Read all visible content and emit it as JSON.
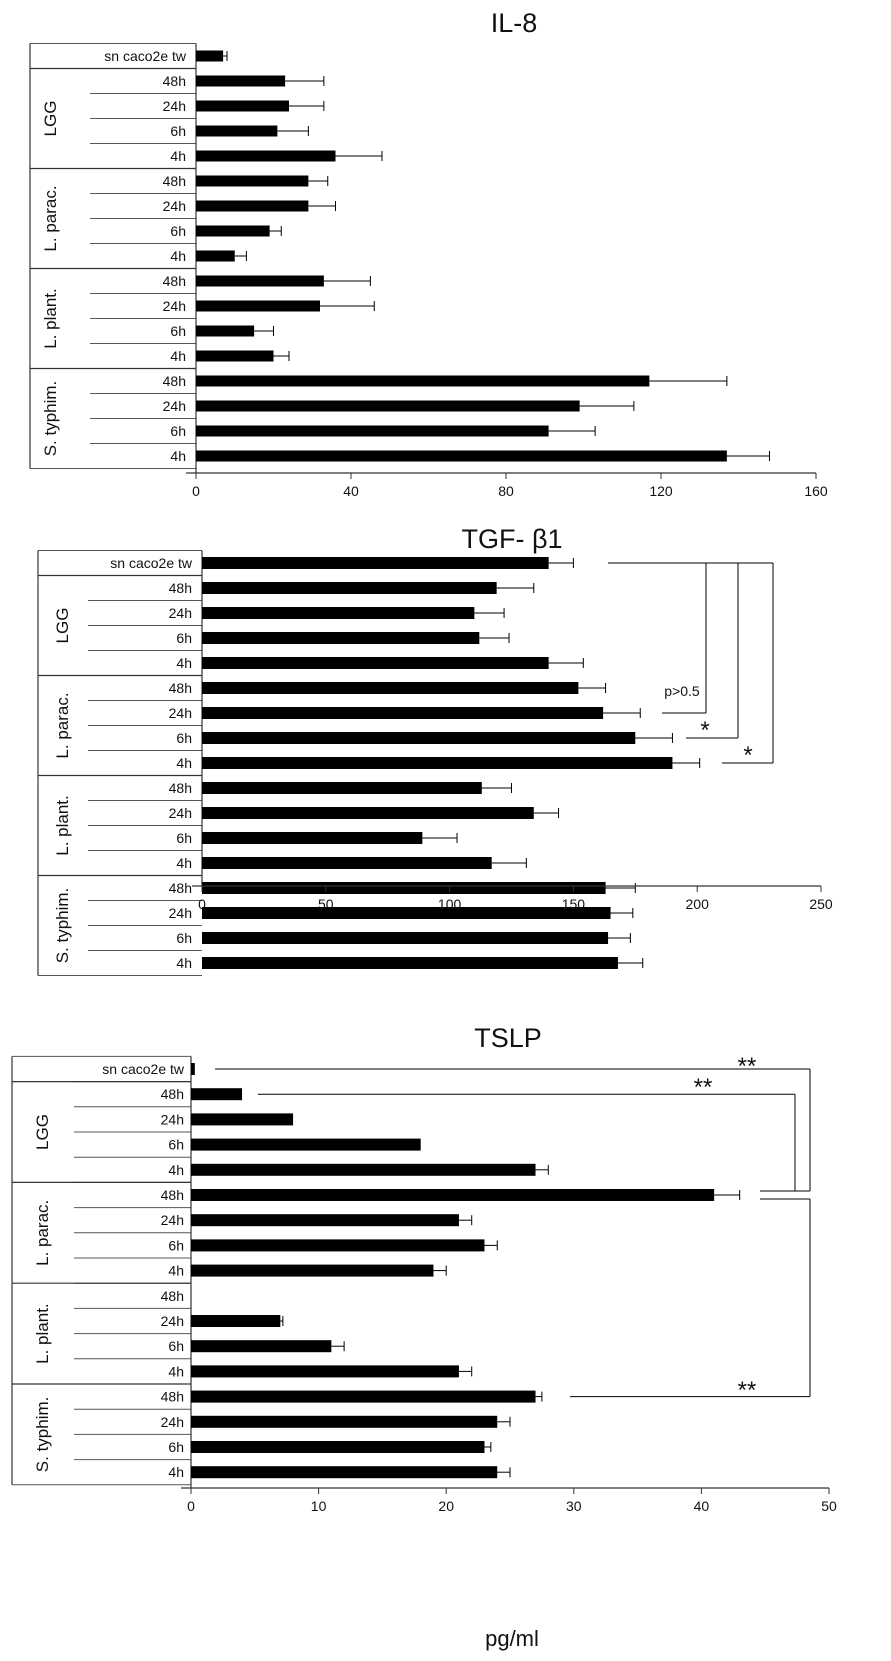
{
  "chart_data": [
    {
      "type": "bar",
      "orientation": "horizontal",
      "title": "IL-8",
      "xlim": [
        0,
        160
      ],
      "xticks": [
        "0",
        "40",
        "80",
        "120",
        "160"
      ],
      "grid": false,
      "rows": [
        {
          "group": "",
          "label": "sn caco2e tw",
          "value": 7,
          "error": 1
        },
        {
          "group": "LGG",
          "label": "48h",
          "value": 23,
          "error": 10
        },
        {
          "group": "LGG",
          "label": "24h",
          "value": 24,
          "error": 9
        },
        {
          "group": "LGG",
          "label": "6h",
          "value": 21,
          "error": 8
        },
        {
          "group": "LGG",
          "label": "4h",
          "value": 36,
          "error": 12
        },
        {
          "group": "L. parac.",
          "label": "48h",
          "value": 29,
          "error": 5
        },
        {
          "group": "L. parac.",
          "label": "24h",
          "value": 29,
          "error": 7
        },
        {
          "group": "L. parac.",
          "label": "6h",
          "value": 19,
          "error": 3
        },
        {
          "group": "L. parac.",
          "label": "4h",
          "value": 10,
          "error": 3
        },
        {
          "group": "L. plant.",
          "label": "48h",
          "value": 33,
          "error": 12
        },
        {
          "group": "L. plant.",
          "label": "24h",
          "value": 32,
          "error": 14
        },
        {
          "group": "L. plant.",
          "label": "6h",
          "value": 15,
          "error": 5
        },
        {
          "group": "L. plant.",
          "label": "4h",
          "value": 20,
          "error": 4
        },
        {
          "group": "S. typhim.",
          "label": "48h",
          "value": 117,
          "error": 20
        },
        {
          "group": "S. typhim.",
          "label": "24h",
          "value": 99,
          "error": 14
        },
        {
          "group": "S. typhim.",
          "label": "6h",
          "value": 91,
          "error": 12
        },
        {
          "group": "S. typhim.",
          "label": "4h",
          "value": 137,
          "error": 11
        }
      ],
      "groups": [
        "LGG",
        "L. parac.",
        "L. plant.",
        "S. typhim."
      ],
      "annotations": []
    },
    {
      "type": "bar",
      "orientation": "horizontal",
      "title": "TGF- β1",
      "xlim": [
        0,
        250
      ],
      "xticks": [
        "0",
        "50",
        "100",
        "150",
        "200",
        "250"
      ],
      "grid": false,
      "rows": [
        {
          "group": "",
          "label": "sn caco2e tw",
          "value": 140,
          "error": 10
        },
        {
          "group": "LGG",
          "label": "48h",
          "value": 119,
          "error": 15
        },
        {
          "group": "LGG",
          "label": "24h",
          "value": 110,
          "error": 12
        },
        {
          "group": "LGG",
          "label": "6h",
          "value": 112,
          "error": 12
        },
        {
          "group": "LGG",
          "label": "4h",
          "value": 140,
          "error": 14
        },
        {
          "group": "L. parac.",
          "label": "48h",
          "value": 152,
          "error": 11
        },
        {
          "group": "L. parac.",
          "label": "24h",
          "value": 162,
          "error": 15
        },
        {
          "group": "L. parac.",
          "label": "6h",
          "value": 175,
          "error": 15
        },
        {
          "group": "L. parac.",
          "label": "4h",
          "value": 190,
          "error": 11
        },
        {
          "group": "L. plant.",
          "label": "48h",
          "value": 113,
          "error": 12
        },
        {
          "group": "L. plant.",
          "label": "24h",
          "value": 134,
          "error": 10
        },
        {
          "group": "L. plant.",
          "label": "6h",
          "value": 89,
          "error": 14
        },
        {
          "group": "L. plant.",
          "label": "4h",
          "value": 117,
          "error": 14
        },
        {
          "group": "S. typhim.",
          "label": "48h",
          "value": 163,
          "error": 12
        },
        {
          "group": "S. typhim.",
          "label": "24h",
          "value": 165,
          "error": 9
        },
        {
          "group": "S. typhim.",
          "label": "6h",
          "value": 164,
          "error": 9
        },
        {
          "group": "S. typhim.",
          "label": "4h",
          "value": 168,
          "error": 10
        }
      ],
      "groups": [
        "LGG",
        "L. parac.",
        "L. plant.",
        "S. typhim."
      ],
      "annotations": [
        {
          "text": "p>0.5",
          "from_row": 0,
          "to_row": 6
        },
        {
          "text": "*",
          "from_row": 0,
          "to_row": 7
        },
        {
          "text": "*",
          "from_row": 0,
          "to_row": 8
        }
      ]
    },
    {
      "type": "bar",
      "orientation": "horizontal",
      "title": "TSLP",
      "xlabel": "pg/ml",
      "xlim": [
        0,
        50
      ],
      "xticks": [
        "0",
        "10",
        "20",
        "30",
        "40",
        "50"
      ],
      "grid": false,
      "rows": [
        {
          "group": "",
          "label": "sn caco2e tw",
          "value": 0.3,
          "error": 0
        },
        {
          "group": "LGG",
          "label": "48h",
          "value": 4,
          "error": 0
        },
        {
          "group": "LGG",
          "label": "24h",
          "value": 8,
          "error": 0
        },
        {
          "group": "LGG",
          "label": "6h",
          "value": 18,
          "error": 0
        },
        {
          "group": "LGG",
          "label": "4h",
          "value": 27,
          "error": 1
        },
        {
          "group": "L. parac.",
          "label": "48h",
          "value": 41,
          "error": 2
        },
        {
          "group": "L. parac.",
          "label": "24h",
          "value": 21,
          "error": 1
        },
        {
          "group": "L. parac.",
          "label": "6h",
          "value": 23,
          "error": 1
        },
        {
          "group": "L. parac.",
          "label": "4h",
          "value": 19,
          "error": 1
        },
        {
          "group": "L. plant.",
          "label": "48h",
          "value": 0,
          "error": 0
        },
        {
          "group": "L. plant.",
          "label": "24h",
          "value": 7,
          "error": 0.2
        },
        {
          "group": "L. plant.",
          "label": "6h",
          "value": 11,
          "error": 1
        },
        {
          "group": "L. plant.",
          "label": "4h",
          "value": 21,
          "error": 1
        },
        {
          "group": "S. typhim.",
          "label": "48h",
          "value": 27,
          "error": 0.5
        },
        {
          "group": "S. typhim.",
          "label": "24h",
          "value": 24,
          "error": 1
        },
        {
          "group": "S. typhim.",
          "label": "6h",
          "value": 23,
          "error": 0.5
        },
        {
          "group": "S. typhim.",
          "label": "4h",
          "value": 24,
          "error": 1
        }
      ],
      "groups": [
        "LGG",
        "L. parac.",
        "L. plant.",
        "S. typhim."
      ],
      "annotations": [
        {
          "text": "**",
          "from_row": 0,
          "to_row": 5
        },
        {
          "text": "**",
          "from_row": 1,
          "to_row": 5
        },
        {
          "text": "**",
          "from_row": 13,
          "to_row": 5
        }
      ]
    }
  ]
}
